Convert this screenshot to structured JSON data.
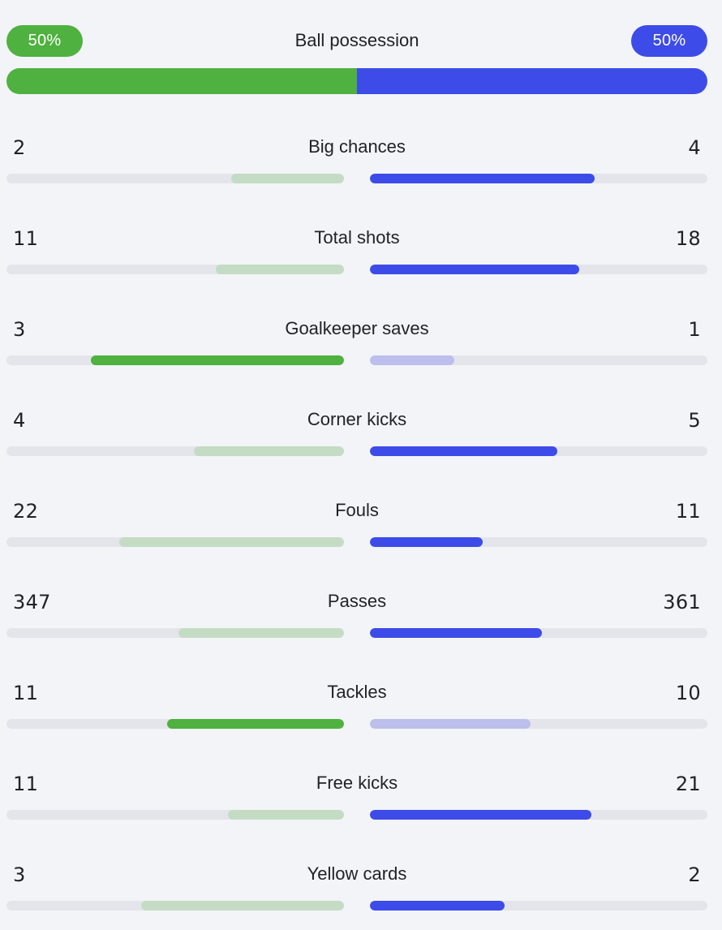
{
  "colors": {
    "home_strong": "#4fb13f",
    "home_weak": "#c4dcc4",
    "away_strong": "#3d4ce8",
    "away_weak": "#bcbfec",
    "track": "#e4e5ea"
  },
  "possession": {
    "label": "Ball possession",
    "home_text": "50%",
    "away_text": "50%",
    "home_value": 50,
    "away_value": 50
  },
  "stats": [
    {
      "label": "Big chances",
      "home": "2",
      "away": "4",
      "home_fill": 0.333,
      "away_fill": 0.667,
      "leader": "away"
    },
    {
      "label": "Total shots",
      "home": "11",
      "away": "18",
      "home_fill": 0.379,
      "away_fill": 0.621,
      "leader": "away"
    },
    {
      "label": "Goalkeeper saves",
      "home": "3",
      "away": "1",
      "home_fill": 0.75,
      "away_fill": 0.25,
      "leader": "home"
    },
    {
      "label": "Corner kicks",
      "home": "4",
      "away": "5",
      "home_fill": 0.444,
      "away_fill": 0.556,
      "leader": "away"
    },
    {
      "label": "Fouls",
      "home": "22",
      "away": "11",
      "home_fill": 0.667,
      "away_fill": 0.333,
      "leader": "away"
    },
    {
      "label": "Passes",
      "home": "347",
      "away": "361",
      "home_fill": 0.49,
      "away_fill": 0.51,
      "leader": "away"
    },
    {
      "label": "Tackles",
      "home": "11",
      "away": "10",
      "home_fill": 0.524,
      "away_fill": 0.476,
      "leader": "home"
    },
    {
      "label": "Free kicks",
      "home": "11",
      "away": "21",
      "home_fill": 0.344,
      "away_fill": 0.656,
      "leader": "away"
    },
    {
      "label": "Yellow cards",
      "home": "3",
      "away": "2",
      "home_fill": 0.6,
      "away_fill": 0.4,
      "leader": "away"
    }
  ]
}
